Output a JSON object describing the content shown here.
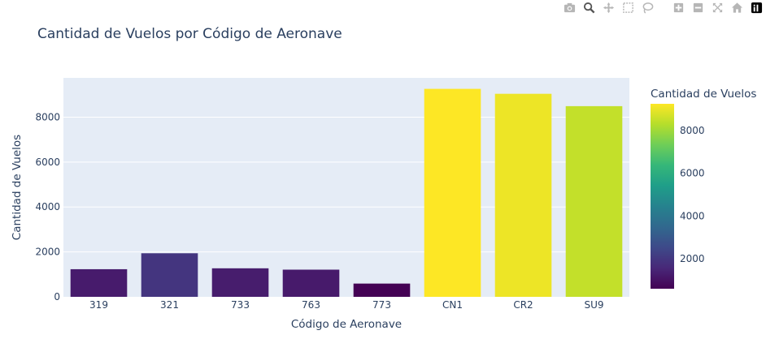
{
  "chart_data": {
    "type": "bar",
    "title": "Cantidad de Vuelos por Código de Aeronave",
    "xlabel": "Código de Aeronave",
    "ylabel": "Cantidad de Vuelos",
    "categories": [
      "319",
      "321",
      "733",
      "763",
      "773",
      "CN1",
      "CR2",
      "SU9"
    ],
    "values": [
      1230,
      1940,
      1270,
      1210,
      590,
      9260,
      9040,
      8490
    ],
    "ylim": [
      0,
      9750
    ],
    "yticks": [
      0,
      2000,
      4000,
      6000,
      8000
    ],
    "grid": true,
    "colorscale": "Viridis",
    "colorbar": {
      "title": "Cantidad de Vuelos",
      "ticks": [
        2000,
        4000,
        6000,
        8000
      ],
      "range": [
        590,
        9260
      ]
    },
    "colors": {
      "plot_bg": "#e5ecf6",
      "grid": "#ffffff",
      "text": "#2a3f5f"
    }
  },
  "modebar": {
    "icons": [
      "camera-icon",
      "zoom-icon",
      "pan-icon",
      "box-select-icon",
      "lasso-icon",
      "zoom-in-icon",
      "zoom-out-icon",
      "autoscale-icon",
      "home-icon",
      "plotly-logo-icon"
    ]
  }
}
